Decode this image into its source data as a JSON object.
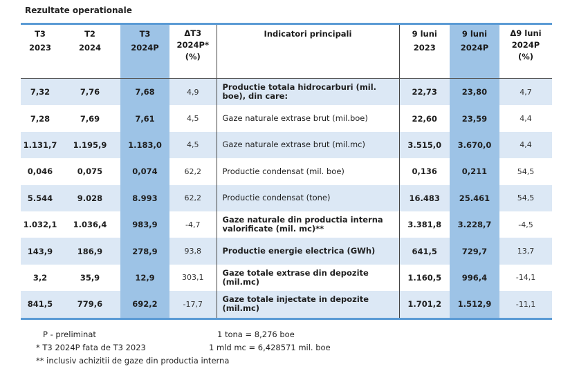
{
  "title": "Rezultate operationale",
  "headers": [
    {
      "line1": "T3",
      "line2": "2023",
      "line3": ""
    },
    {
      "line1": "T2",
      "line2": "2024",
      "line3": ""
    },
    {
      "line1": "T3",
      "line2": "2024P",
      "line3": ""
    },
    {
      "line1": "ΔT3",
      "line2": "2024P*",
      "line3": "(%)"
    },
    {
      "line1": "Indicatori principali",
      "line2": "",
      "line3": ""
    },
    {
      "line1": "9 luni",
      "line2": "2023",
      "line3": ""
    },
    {
      "line1": "9 luni",
      "line2": "2024P",
      "line3": ""
    },
    {
      "line1": "Δ9 luni",
      "line2": "2024P",
      "line3": "(%)"
    }
  ],
  "rows": [
    {
      "t3_2023": "7,32",
      "t2_2024": "7,76",
      "t3_2024p": "7,68",
      "d_t3": "4,9",
      "indicator": "Productie totala hidrocarburi (mil. boe), din care:",
      "bold": true,
      "m9_2023": "22,73",
      "m9_2024p": "23,80",
      "d_m9": "4,7"
    },
    {
      "t3_2023": "7,28",
      "t2_2024": "7,69",
      "t3_2024p": "7,61",
      "d_t3": "4,5",
      "indicator": "Gaze naturale extrase brut (mil.boe)",
      "bold": false,
      "m9_2023": "22,60",
      "m9_2024p": "23,59",
      "d_m9": "4,4"
    },
    {
      "t3_2023": "1.131,7",
      "t2_2024": "1.195,9",
      "t3_2024p": "1.183,0",
      "d_t3": "4,5",
      "indicator": "Gaze naturale extrase brut (mil.mc)",
      "bold": false,
      "m9_2023": "3.515,0",
      "m9_2024p": "3.670,0",
      "d_m9": "4,4"
    },
    {
      "t3_2023": "0,046",
      "t2_2024": "0,075",
      "t3_2024p": "0,074",
      "d_t3": "62,2",
      "indicator": "Productie condensat (mil. boe)",
      "bold": false,
      "m9_2023": "0,136",
      "m9_2024p": "0,211",
      "d_m9": "54,5"
    },
    {
      "t3_2023": "5.544",
      "t2_2024": "9.028",
      "t3_2024p": "8.993",
      "d_t3": "62,2",
      "indicator": "Productie condensat (tone)",
      "bold": false,
      "m9_2023": "16.483",
      "m9_2024p": "25.461",
      "d_m9": "54,5"
    },
    {
      "t3_2023": "1.032,1",
      "t2_2024": "1.036,4",
      "t3_2024p": "983,9",
      "d_t3": "-4,7",
      "indicator": "Gaze naturale din productia interna valorificate (mil. mc)**",
      "bold": true,
      "m9_2023": "3.381,8",
      "m9_2024p": "3.228,7",
      "d_m9": "-4,5"
    },
    {
      "t3_2023": "143,9",
      "t2_2024": "186,9",
      "t3_2024p": "278,9",
      "d_t3": "93,8",
      "indicator": "Productie energie electrica (GWh)",
      "bold": true,
      "m9_2023": "641,5",
      "m9_2024p": "729,7",
      "d_m9": "13,7"
    },
    {
      "t3_2023": "3,2",
      "t2_2024": "35,9",
      "t3_2024p": "12,9",
      "d_t3": "303,1",
      "indicator": "Gaze totale extrase din depozite (mil.mc)",
      "bold": true,
      "m9_2023": "1.160,5",
      "m9_2024p": "996,4",
      "d_m9": "-14,1"
    },
    {
      "t3_2023": "841,5",
      "t2_2024": "779,6",
      "t3_2024p": "692,2",
      "d_t3": "-17,7",
      "indicator": "Gaze totale injectate in depozite (mil.mc)",
      "bold": true,
      "m9_2023": "1.701,2",
      "m9_2024p": "1.512,9",
      "d_m9": "-11,1"
    }
  ],
  "notes": {
    "n1_left": "P - preliminat",
    "n1_right": "1 tona = 8,276 boe",
    "n2_left": "* T3 2024P fata de T3 2023",
    "n2_right": "1 mld mc = 6,428571 mil. boe",
    "n3_left": "** inclusiv achizitii de gaze din productia interna"
  },
  "colors": {
    "header_rule": "#5b9bd5",
    "row_shade": "#dce8f5",
    "highlight_column": "#9dc3e6"
  }
}
